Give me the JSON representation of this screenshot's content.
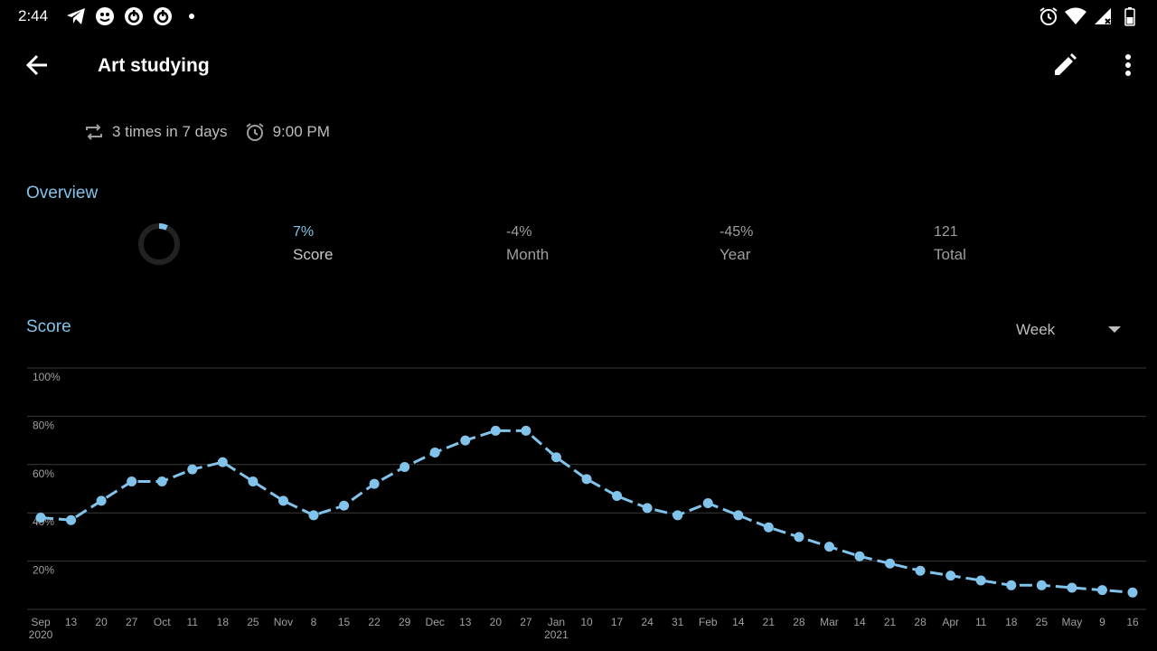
{
  "status_bar": {
    "time": "2:44",
    "left_icons": [
      "telegram-icon",
      "app-icon",
      "ring-app-icon",
      "ring-app-icon",
      "dot-icon"
    ],
    "right_icons": [
      "alarm-icon",
      "wifi-icon",
      "signal-icon",
      "battery-icon"
    ]
  },
  "app_bar": {
    "title": "Art studying",
    "back_icon": "arrow-back-icon",
    "edit_icon": "pencil-icon",
    "more_icon": "more-vert-icon"
  },
  "habit": {
    "frequency": "3 times in 7 days",
    "reminder": "9:00 PM"
  },
  "overview": {
    "title": "Overview",
    "ring_percent": 7,
    "stats": [
      {
        "value": "7%",
        "label": "Score"
      },
      {
        "value": "-4%",
        "label": "Month"
      },
      {
        "value": "-45%",
        "label": "Year"
      },
      {
        "value": "121",
        "label": "Total"
      }
    ]
  },
  "score_section": {
    "title": "Score",
    "period": "Week"
  },
  "colors": {
    "accent": "#81c3ea",
    "background": "#000000",
    "grid": "#3a3a3a",
    "text_secondary": "#9e9e9e"
  },
  "chart_data": {
    "type": "line",
    "ylim": [
      0,
      100
    ],
    "y_ticks": [
      "20%",
      "40%",
      "60%",
      "80%",
      "100%"
    ],
    "x_labels": [
      {
        "top": "Sep",
        "bottom": "2020"
      },
      {
        "top": "13"
      },
      {
        "top": "20"
      },
      {
        "top": "27"
      },
      {
        "top": "Oct"
      },
      {
        "top": "11"
      },
      {
        "top": "18"
      },
      {
        "top": "25"
      },
      {
        "top": "Nov"
      },
      {
        "top": "8"
      },
      {
        "top": "15"
      },
      {
        "top": "22"
      },
      {
        "top": "29"
      },
      {
        "top": "Dec"
      },
      {
        "top": "13"
      },
      {
        "top": "20"
      },
      {
        "top": "27"
      },
      {
        "top": "Jan",
        "bottom": "2021"
      },
      {
        "top": "10"
      },
      {
        "top": "17"
      },
      {
        "top": "24"
      },
      {
        "top": "31"
      },
      {
        "top": "Feb"
      },
      {
        "top": "14"
      },
      {
        "top": "21"
      },
      {
        "top": "28"
      },
      {
        "top": "Mar"
      },
      {
        "top": "14"
      },
      {
        "top": "21"
      },
      {
        "top": "28"
      },
      {
        "top": "Apr"
      },
      {
        "top": "11"
      },
      {
        "top": "18"
      },
      {
        "top": "25"
      },
      {
        "top": "May"
      },
      {
        "top": "9"
      },
      {
        "top": "16"
      }
    ],
    "series": [
      {
        "values": [
          38,
          37,
          45,
          53,
          53,
          58,
          61,
          53,
          45,
          39,
          43,
          52,
          59,
          65,
          70,
          74,
          74,
          63,
          54,
          47,
          42,
          39,
          44,
          39,
          34,
          30,
          26,
          22,
          19,
          16,
          14,
          12,
          10,
          10,
          9,
          8,
          7
        ]
      }
    ]
  }
}
